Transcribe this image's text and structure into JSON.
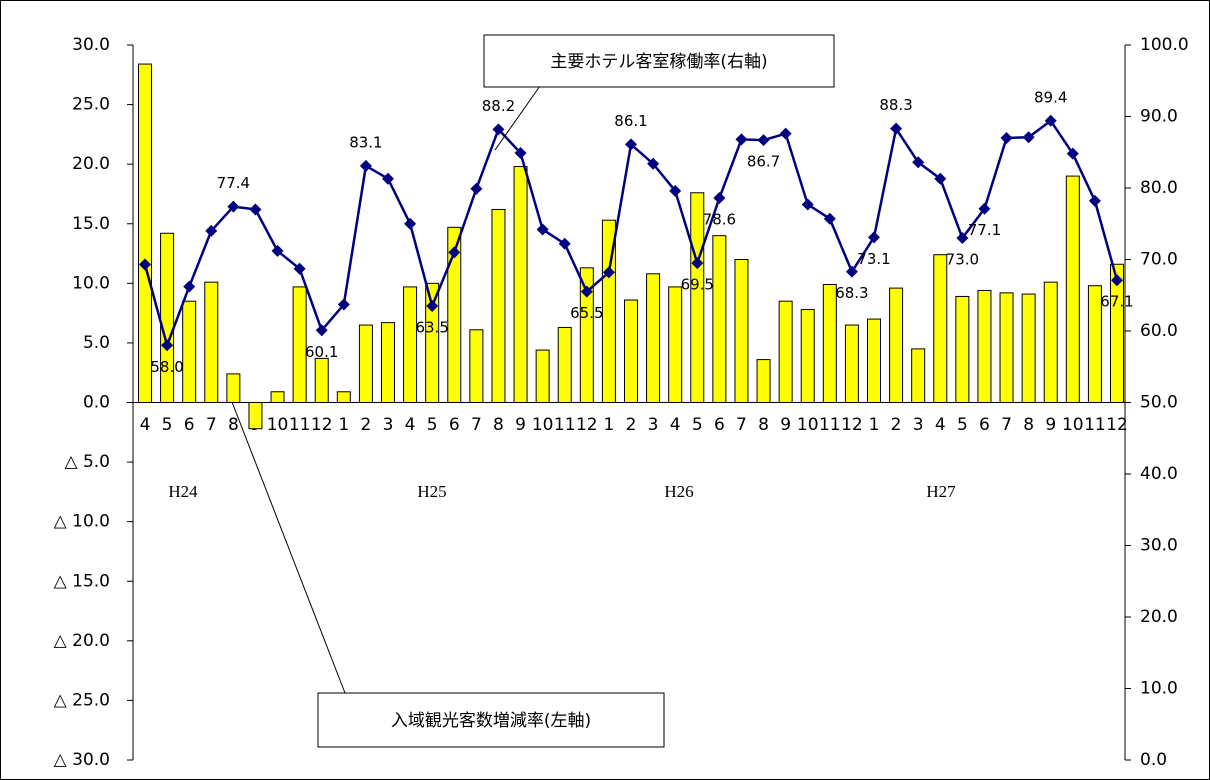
{
  "chart_data": {
    "type": "bar-line",
    "categories": [
      "4",
      "5",
      "6",
      "7",
      "8",
      "9",
      "10",
      "11",
      "12",
      "1",
      "2",
      "3",
      "4",
      "5",
      "6",
      "7",
      "8",
      "9",
      "10",
      "11",
      "12",
      "1",
      "2",
      "3",
      "4",
      "5",
      "6",
      "7",
      "8",
      "9",
      "10",
      "11",
      "12",
      "1",
      "2",
      "3",
      "4",
      "5",
      "6",
      "7",
      "8",
      "9",
      "10",
      "11",
      "12"
    ],
    "year_labels": [
      "H24",
      "H25",
      "H26",
      "H27"
    ],
    "series": [
      {
        "name": "入域観光客数増減率(左軸)",
        "type": "bar",
        "color": "#ffff00",
        "values": [
          28.4,
          14.2,
          8.5,
          10.1,
          2.4,
          -2.2,
          0.9,
          9.7,
          3.7,
          0.9,
          6.5,
          6.7,
          9.7,
          10.0,
          14.7,
          6.1,
          16.2,
          19.8,
          4.4,
          6.3,
          11.3,
          15.3,
          8.6,
          10.8,
          9.7,
          17.6,
          14.0,
          12.0,
          3.6,
          8.5,
          7.8,
          9.9,
          6.5,
          7.0,
          9.6,
          4.5,
          12.4,
          8.9,
          9.4,
          9.2,
          9.1,
          10.1,
          19.0,
          9.8,
          11.6
        ]
      },
      {
        "name": "主要ホテル客室稼働率(右軸)",
        "type": "line",
        "axis": "y2",
        "color": "#000080",
        "values": [
          69.3,
          58.0,
          66.2,
          74.0,
          77.4,
          77.0,
          71.2,
          68.7,
          60.1,
          63.7,
          83.1,
          81.3,
          75.0,
          63.5,
          71.0,
          79.9,
          88.2,
          84.9,
          74.2,
          72.2,
          65.5,
          68.2,
          86.1,
          83.4,
          79.6,
          69.5,
          78.6,
          86.8,
          86.7,
          87.6,
          77.7,
          75.7,
          68.3,
          73.1,
          88.3,
          83.6,
          81.3,
          73.0,
          77.1,
          87.0,
          87.1,
          89.4,
          84.8,
          78.2,
          67.1
        ],
        "value_labels": [
          null,
          "58.0",
          null,
          null,
          "77.4",
          null,
          null,
          null,
          "60.1",
          null,
          "83.1",
          null,
          null,
          "63.5",
          null,
          null,
          "88.2",
          null,
          null,
          null,
          "65.5",
          null,
          "86.1",
          null,
          null,
          "69.5",
          "78.6",
          null,
          "86.7",
          null,
          null,
          null,
          "68.3",
          "73.1",
          "88.3",
          null,
          null,
          "73.0",
          "77.1",
          null,
          null,
          "89.4",
          null,
          null,
          "67.1"
        ]
      }
    ],
    "ylim": [
      -30,
      30
    ],
    "yticks": [
      {
        "value": 30,
        "label": "30.0"
      },
      {
        "value": 25,
        "label": "25.0"
      },
      {
        "value": 20,
        "label": "20.0"
      },
      {
        "value": 15,
        "label": "15.0"
      },
      {
        "value": 10,
        "label": "10.0"
      },
      {
        "value": 5,
        "label": "5.0"
      },
      {
        "value": 0,
        "label": "0.0"
      },
      {
        "value": -5,
        "label": "△ 5.0"
      },
      {
        "value": -10,
        "label": "△ 10.0"
      },
      {
        "value": -15,
        "label": "△ 15.0"
      },
      {
        "value": -20,
        "label": "△ 20.0"
      },
      {
        "value": -25,
        "label": "△ 25.0"
      },
      {
        "value": -30,
        "label": "△ 30.0"
      }
    ],
    "y2lim": [
      0,
      100
    ],
    "y2ticks": [
      {
        "value": 100,
        "label": "100.0"
      },
      {
        "value": 90,
        "label": "90.0"
      },
      {
        "value": 80,
        "label": "80.0"
      },
      {
        "value": 70,
        "label": "70.0"
      },
      {
        "value": 60,
        "label": "60.0"
      },
      {
        "value": 50,
        "label": "50.0"
      },
      {
        "value": 40,
        "label": "40.0"
      },
      {
        "value": 30,
        "label": "30.0"
      },
      {
        "value": 20,
        "label": "20.0"
      },
      {
        "value": 10,
        "label": "10.0"
      },
      {
        "value": 0,
        "label": "0.0"
      }
    ],
    "grid": false
  }
}
